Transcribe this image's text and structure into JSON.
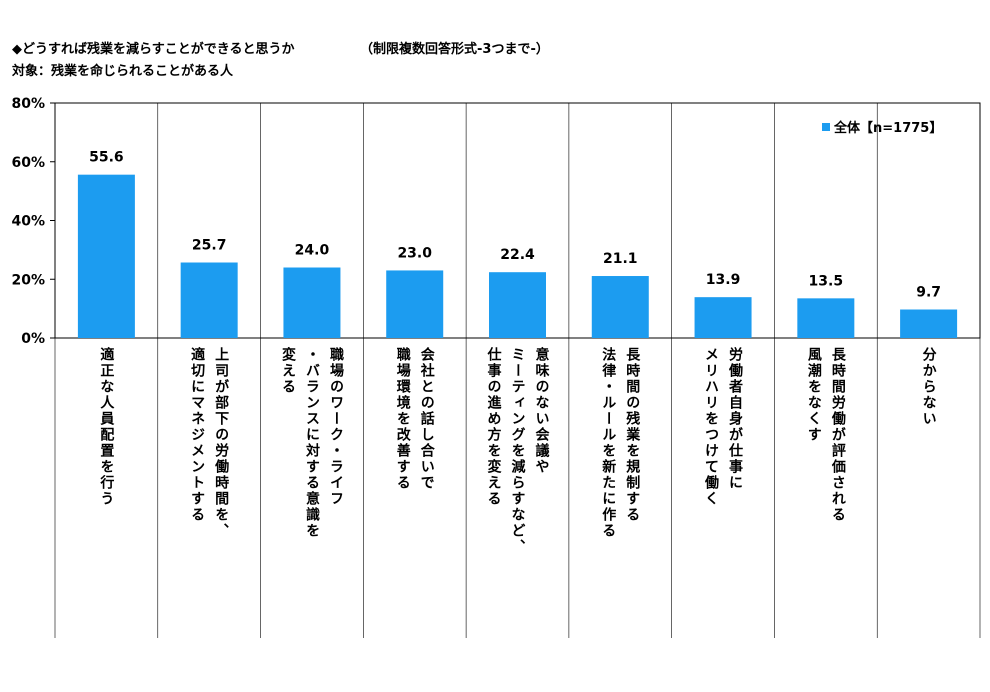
{
  "header": {
    "title": "◆どうすれば残業を減らすことができると思うか",
    "note": "（制限複数回答形式-3つまで-）",
    "target": "対象：残業を命じられることがある人"
  },
  "chart_data": {
    "type": "bar",
    "title": "どうすれば残業を減らすことができると思うか",
    "ylim": [
      0,
      80
    ],
    "yticks": [
      0,
      20,
      40,
      60,
      80
    ],
    "ytick_labels": [
      "0%",
      "20%",
      "40%",
      "60%",
      "80%"
    ],
    "categories": [
      [
        "適正な人員配置を行う"
      ],
      [
        "上司が部下の労働時間を、",
        "適切にマネジメントする"
      ],
      [
        "職場のワーク・ライフ",
        "・バランスに対する意識を",
        "変える"
      ],
      [
        "会社との話し合いで",
        "職場環境を改善する"
      ],
      [
        "意味のない会議や",
        "ミーティングを減らすなど、",
        "仕事の進め方を変える"
      ],
      [
        "長時間の残業を規制する",
        "法律・ルールを新たに作る"
      ],
      [
        "労働者自身が仕事に",
        "メリハリをつけて働く"
      ],
      [
        "長時間労働が評価される",
        "風潮をなくす"
      ],
      [
        "分からない"
      ]
    ],
    "series": [
      {
        "name": "全体【n=1775】",
        "color": "#1C9CF0",
        "values": [
          55.6,
          25.7,
          24.0,
          23.0,
          22.4,
          21.1,
          13.9,
          13.5,
          9.7
        ],
        "labels": [
          "55.6",
          "25.7",
          "24.0",
          "23.0",
          "22.4",
          "21.1",
          "13.9",
          "13.5",
          "9.7"
        ]
      }
    ],
    "legend": "top-right"
  }
}
